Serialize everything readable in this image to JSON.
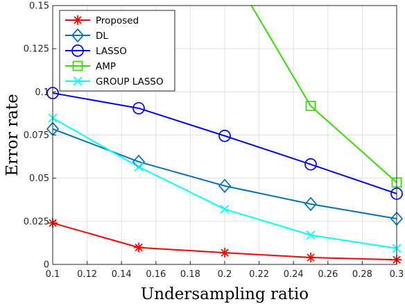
{
  "chart_data": {
    "type": "line",
    "xlabel": "Undersampling ratio",
    "ylabel": "Error rate",
    "xlim": [
      0.1,
      0.3
    ],
    "ylim": [
      0,
      0.15
    ],
    "grid": true,
    "legend_position": "top-left",
    "x_ticks": [
      "0.1",
      "0.12",
      "0.14",
      "0.16",
      "0.18",
      "0.2",
      "0.22",
      "0.24",
      "0.26",
      "0.28",
      "0.3"
    ],
    "y_ticks": [
      "0",
      "0.025",
      "0.05",
      "0.075",
      "0.1",
      "0.125",
      "0.15"
    ],
    "x": [
      0.1,
      0.15,
      0.2,
      0.25,
      0.3
    ],
    "series": [
      {
        "name": "Proposed",
        "color": "#ff0000",
        "marker": "asterisk",
        "values": [
          0.024,
          0.0098,
          0.0068,
          0.004,
          0.0027
        ]
      },
      {
        "name": "DL",
        "color": "#0072bd",
        "marker": "diamond",
        "values": [
          0.0785,
          0.0595,
          0.0455,
          0.035,
          0.0265
        ]
      },
      {
        "name": "LASSO",
        "color": "#0000ff",
        "marker": "circle",
        "values": [
          0.0993,
          0.0905,
          0.0745,
          0.058,
          0.041
        ]
      },
      {
        "name": "AMP",
        "color": "#33dd00",
        "marker": "square",
        "values": [
          null,
          null,
          null,
          0.0918,
          0.0475
        ],
        "x_start": 0.2155,
        "y_start": 0.15
      },
      {
        "name": "GROUP LASSO",
        "color": "#00ffff",
        "marker": "x",
        "values": [
          0.0848,
          0.0565,
          0.032,
          0.017,
          0.0093
        ]
      }
    ]
  }
}
